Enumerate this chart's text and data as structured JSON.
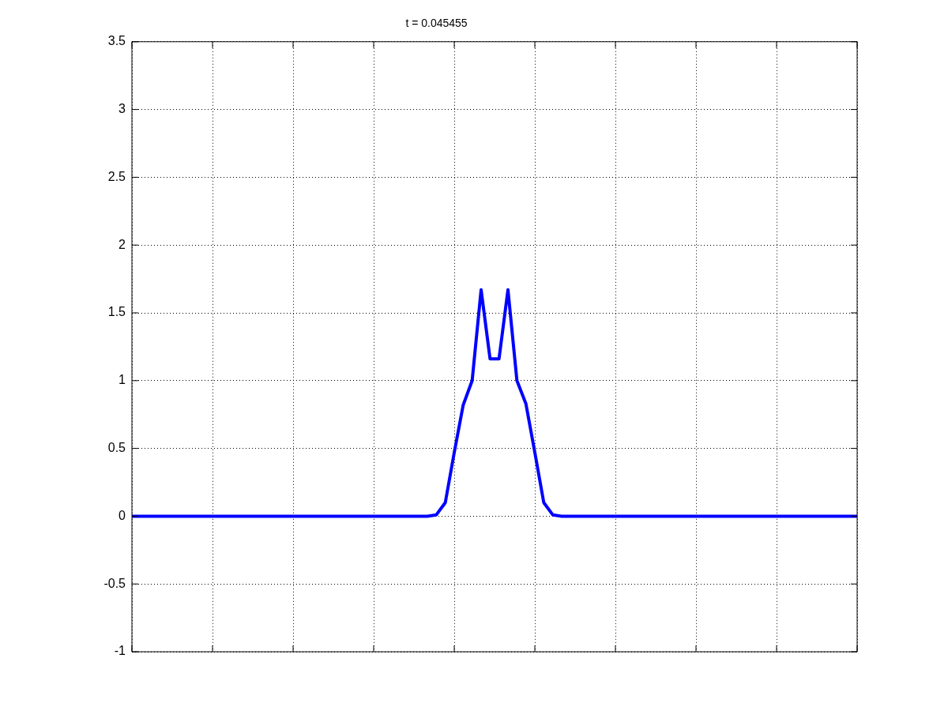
{
  "chart_data": {
    "type": "line",
    "title": "t = 0.045455",
    "categories": [
      null,
      null,
      null,
      null,
      null,
      null,
      null,
      null,
      null,
      null,
      null,
      null,
      null,
      null,
      null,
      null,
      null,
      null,
      null,
      null,
      null,
      null,
      null,
      null,
      null,
      null,
      null,
      null,
      null,
      null,
      null,
      null,
      null,
      null,
      null,
      null,
      null,
      null,
      null,
      null,
      null,
      null,
      null,
      null,
      null,
      null,
      null,
      null,
      null,
      null,
      null,
      null,
      null,
      null,
      null,
      null,
      null,
      null,
      null,
      null,
      null,
      null,
      null,
      null,
      null,
      null,
      null,
      null,
      null,
      null,
      null,
      null,
      null,
      null,
      null,
      null,
      null,
      null,
      null,
      null,
      null,
      null
    ],
    "series": [
      {
        "color": "#0000ff",
        "values": [
          0,
          0,
          0,
          0,
          0,
          0,
          0,
          0,
          0,
          0,
          0,
          0,
          0,
          0,
          0,
          0,
          0,
          0,
          0,
          0,
          0,
          0,
          0,
          0,
          0,
          0,
          0,
          0,
          0,
          0,
          0,
          0,
          0,
          0,
          0.01,
          0.1,
          0.47,
          0.82,
          1.0,
          1.67,
          1.16,
          1.16,
          1.67,
          1.0,
          0.83,
          0.47,
          0.1,
          0.01,
          0,
          0,
          0,
          0,
          0,
          0,
          0,
          0,
          0,
          0,
          0,
          0,
          0,
          0,
          0,
          0,
          0,
          0,
          0,
          0,
          0,
          0,
          0,
          0,
          0,
          0,
          0,
          0,
          0,
          0,
          0,
          0,
          0,
          0
        ]
      }
    ],
    "ylim": [
      -1,
      3.5
    ],
    "yticks": [
      -1,
      -0.5,
      0,
      0.5,
      1,
      1.5,
      2,
      2.5,
      3,
      3.5
    ],
    "grid": true,
    "tick_labels": "y",
    "marker": "none",
    "line_style": "solid"
  }
}
